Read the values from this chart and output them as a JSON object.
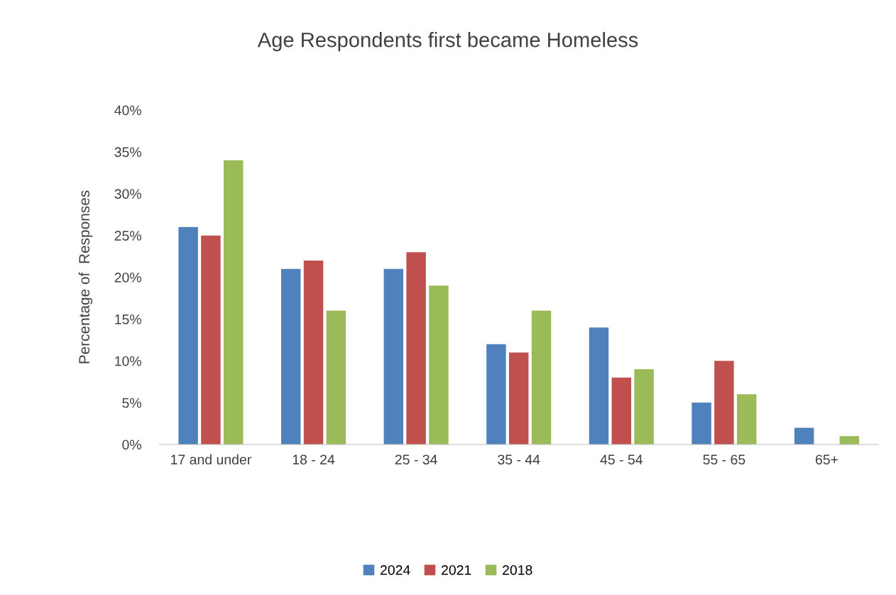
{
  "chart_data": {
    "type": "bar",
    "title": "Age Respondents first became Homeless",
    "ylabel": "Percentage of  Responses",
    "categories": [
      "17 and under",
      "18 - 24",
      "25 - 34",
      "35 - 44",
      "45 - 54",
      "55 - 65",
      "65+"
    ],
    "series": [
      {
        "name": "2024",
        "color": "#4f81bd",
        "values": [
          26,
          21,
          21,
          12,
          14,
          5,
          2
        ]
      },
      {
        "name": "2021",
        "color": "#c0504d",
        "values": [
          25,
          22,
          23,
          11,
          8,
          10,
          0
        ]
      },
      {
        "name": "2018",
        "color": "#9bbb59",
        "values": [
          34,
          16,
          19,
          16,
          9,
          6,
          1
        ]
      }
    ],
    "ylim": [
      0,
      40
    ],
    "yticks": [
      {
        "value": 0,
        "label": "0%"
      },
      {
        "value": 5,
        "label": "5%"
      },
      {
        "value": 10,
        "label": "10%"
      },
      {
        "value": 15,
        "label": "15%"
      },
      {
        "value": 20,
        "label": "20%"
      },
      {
        "value": 25,
        "label": "25%"
      },
      {
        "value": 30,
        "label": "30%"
      },
      {
        "value": 35,
        "label": "35%"
      },
      {
        "value": 40,
        "label": "40%"
      }
    ],
    "grid": false,
    "legend": "bottom"
  }
}
